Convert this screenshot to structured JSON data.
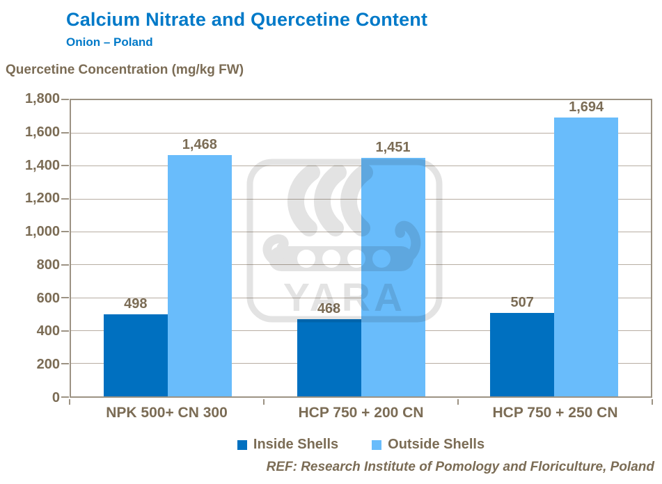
{
  "header": {
    "title": "Calcium Nitrate and Quercetine Content",
    "subtitle": "Onion – Poland"
  },
  "axis_title": "Quercetine Concentration (mg/kg FW)",
  "watermark_text": "YARA",
  "footer": "REF: Research Institute of Pomology and Floriculture, Poland",
  "colors": {
    "title_blue": "#0079C8",
    "text_brown": "#7B6C55",
    "gridline": "#B7ADA2",
    "axis_frame": "#9C9283",
    "inside_shells": "#0070C0",
    "outside_shells": "#69BCFB",
    "watermark_gray": "#E3E3E3"
  },
  "chart_data": {
    "type": "bar",
    "title": "Calcium Nitrate and Quercetine Content",
    "subtitle": "Onion – Poland",
    "xlabel": "",
    "ylabel": "Quercetine Concentration (mg/kg FW)",
    "categories": [
      "NPK 500+ CN 300",
      "HCP 750 + 200 CN",
      "HCP 750 + 250 CN"
    ],
    "series": [
      {
        "name": "Inside Shells",
        "color": "#0070C0",
        "values": [
          498,
          468,
          507
        ]
      },
      {
        "name": "Outside Shells",
        "color": "#69BCFB",
        "values": [
          1468,
          1451,
          1694
        ]
      }
    ],
    "value_labels": [
      "498",
      "1,468",
      "468",
      "1,451",
      "507",
      "1,694"
    ],
    "ylim": [
      0,
      1800
    ],
    "ytick_step": 200,
    "grid": true,
    "legend_position": "bottom"
  }
}
